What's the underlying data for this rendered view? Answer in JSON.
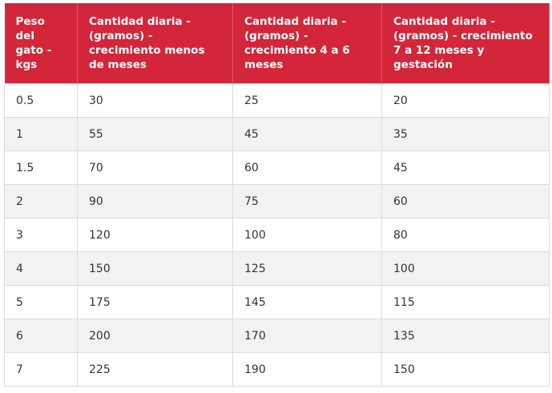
{
  "table": {
    "header": [
      "Peso del gato - kgs",
      "Cantidad diaria - (gramos) - crecimiento menos de meses",
      "Cantidad diaria - (gramos) - crecimiento 4 a 6 meses",
      "Cantidad diaria - (gramos) - crecimiento 7 a 12 meses y gestación"
    ],
    "rows": [
      [
        0.5,
        30,
        25,
        20
      ],
      [
        1,
        55,
        45,
        35
      ],
      [
        1.5,
        70,
        60,
        45
      ],
      [
        2,
        90,
        75,
        60
      ],
      [
        3,
        120,
        100,
        80
      ],
      [
        4,
        150,
        125,
        100
      ],
      [
        5,
        175,
        145,
        115
      ],
      [
        6,
        200,
        170,
        135
      ],
      [
        7,
        225,
        190,
        150
      ]
    ]
  }
}
